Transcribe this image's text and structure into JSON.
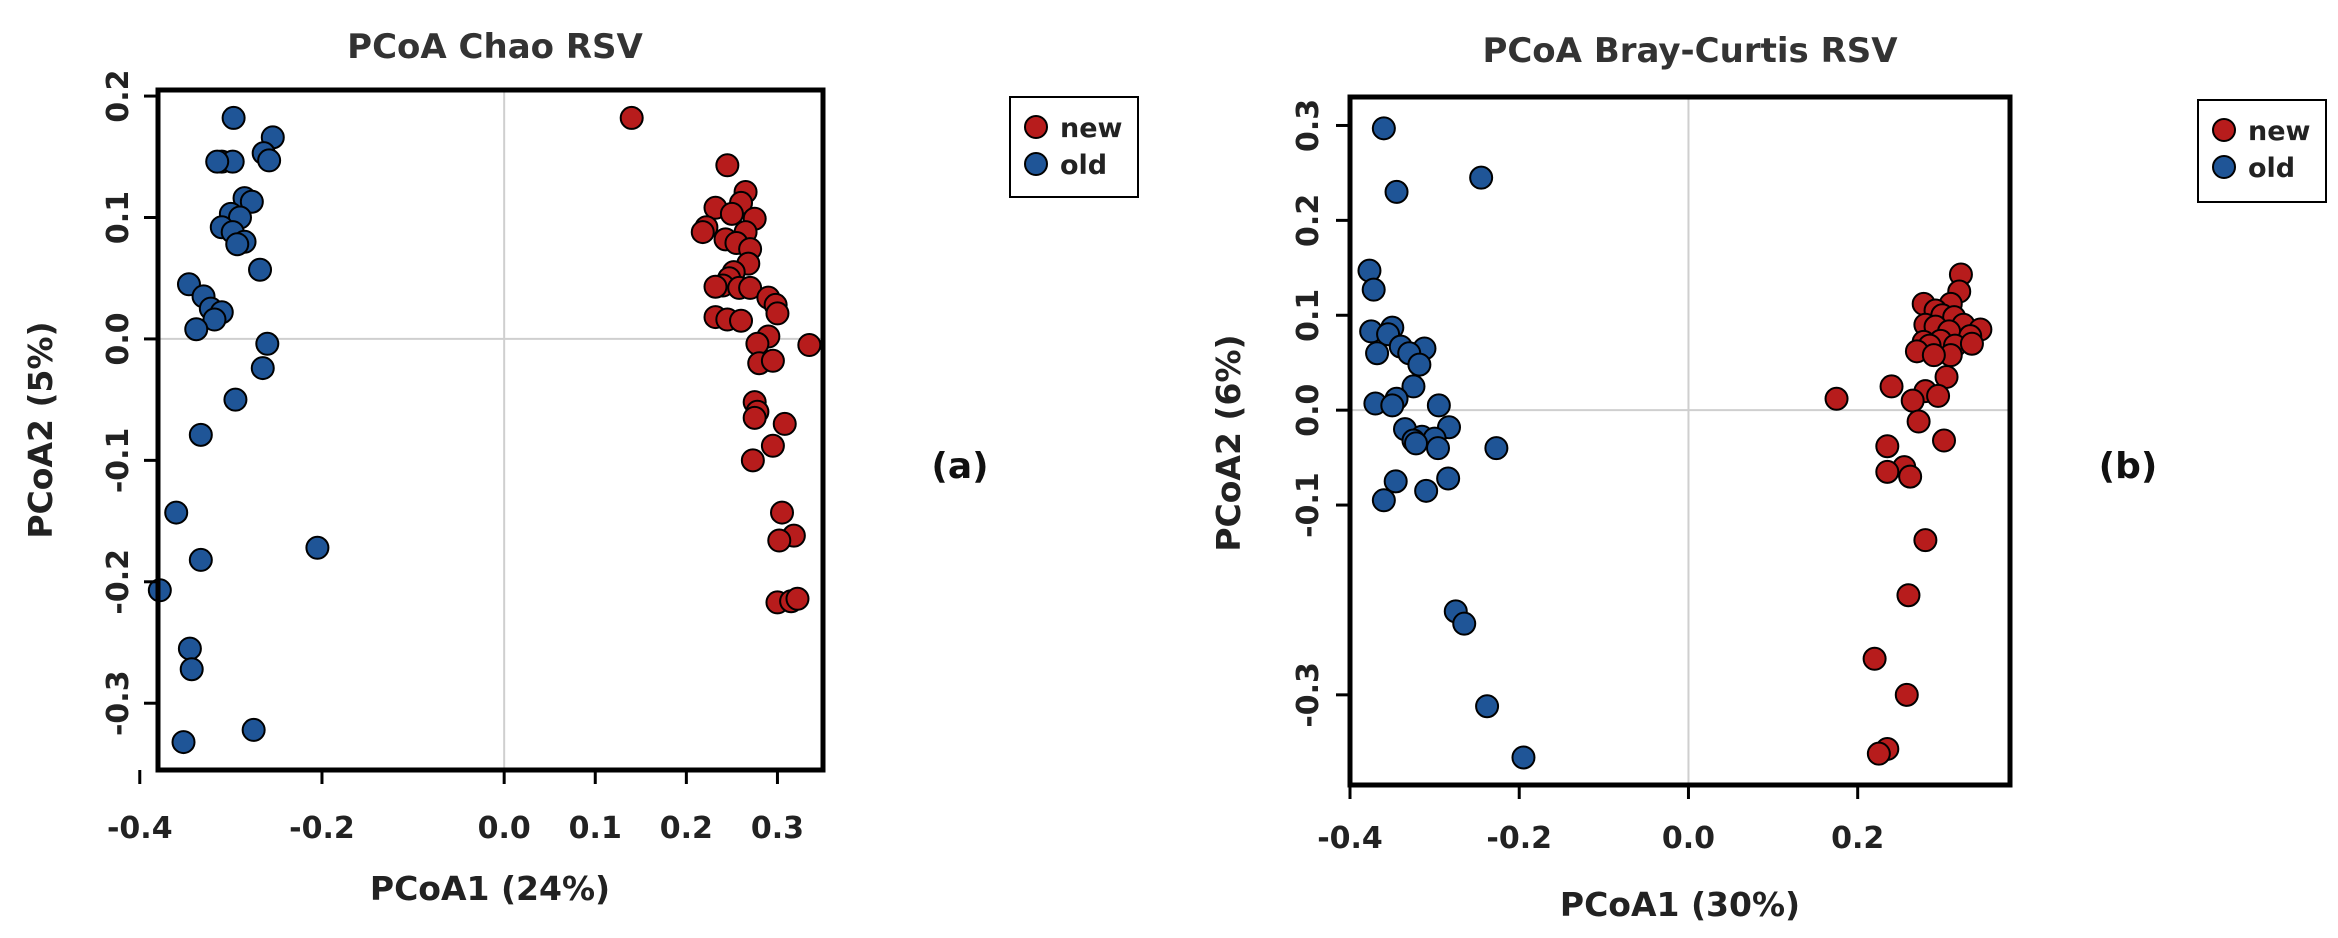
{
  "chart_data": [
    {
      "type": "scatter",
      "title": "PCoA Chao  RSV",
      "xlabel": "PCoA1 (24%)",
      "ylabel": "PCoA2 (5%)",
      "panel_label": "(a)",
      "xlim": [
        -0.38,
        0.35
      ],
      "ylim": [
        -0.355,
        0.205
      ],
      "xticks": [
        -0.4,
        -0.2,
        0.0,
        0.1,
        0.2,
        0.3
      ],
      "xtick_labels": [
        "-0.4",
        "-0.2",
        "0.0",
        "0.1",
        "0.2",
        "0.3"
      ],
      "yticks": [
        0.2,
        0.1,
        0.0,
        -0.1,
        -0.2,
        -0.3
      ],
      "ytick_labels": [
        "0.2",
        "0.1",
        "0.0",
        "-0.1",
        "-0.2",
        "-0.3"
      ],
      "grid": "zero-lines",
      "legend_placement": "right",
      "series": [
        {
          "name": "new",
          "color": "#b71c1c",
          "points": [
            [
              0.14,
              0.182
            ],
            [
              0.245,
              0.143
            ],
            [
              0.265,
              0.121
            ],
            [
              0.26,
              0.112
            ],
            [
              0.232,
              0.108
            ],
            [
              0.25,
              0.103
            ],
            [
              0.275,
              0.099
            ],
            [
              0.222,
              0.092
            ],
            [
              0.218,
              0.088
            ],
            [
              0.265,
              0.088
            ],
            [
              0.243,
              0.082
            ],
            [
              0.255,
              0.079
            ],
            [
              0.27,
              0.074
            ],
            [
              0.268,
              0.062
            ],
            [
              0.252,
              0.055
            ],
            [
              0.247,
              0.05
            ],
            [
              0.24,
              0.044
            ],
            [
              0.232,
              0.043
            ],
            [
              0.258,
              0.042
            ],
            [
              0.27,
              0.042
            ],
            [
              0.29,
              0.034
            ],
            [
              0.298,
              0.028
            ],
            [
              0.3,
              0.021
            ],
            [
              0.232,
              0.018
            ],
            [
              0.245,
              0.016
            ],
            [
              0.26,
              0.015
            ],
            [
              0.29,
              0.002
            ],
            [
              0.278,
              -0.004
            ],
            [
              0.335,
              -0.005
            ],
            [
              0.28,
              -0.02
            ],
            [
              0.295,
              -0.018
            ],
            [
              0.275,
              -0.052
            ],
            [
              0.278,
              -0.06
            ],
            [
              0.308,
              -0.07
            ],
            [
              0.275,
              -0.065
            ],
            [
              0.295,
              -0.088
            ],
            [
              0.273,
              -0.1
            ],
            [
              0.305,
              -0.143
            ],
            [
              0.318,
              -0.162
            ],
            [
              0.302,
              -0.166
            ],
            [
              0.3,
              -0.217
            ],
            [
              0.315,
              -0.216
            ],
            [
              0.322,
              -0.214
            ]
          ]
        },
        {
          "name": "old",
          "color": "#1f5597",
          "points": [
            [
              -0.297,
              0.182
            ],
            [
              -0.254,
              0.166
            ],
            [
              -0.264,
              0.153
            ],
            [
              -0.258,
              0.147
            ],
            [
              -0.31,
              0.146
            ],
            [
              -0.298,
              0.146
            ],
            [
              -0.315,
              0.146
            ],
            [
              -0.285,
              0.116
            ],
            [
              -0.277,
              0.113
            ],
            [
              -0.3,
              0.103
            ],
            [
              -0.29,
              0.1
            ],
            [
              -0.31,
              0.092
            ],
            [
              -0.298,
              0.088
            ],
            [
              -0.285,
              0.08
            ],
            [
              -0.293,
              0.078
            ],
            [
              -0.268,
              0.057
            ],
            [
              -0.346,
              0.045
            ],
            [
              -0.33,
              0.035
            ],
            [
              -0.322,
              0.025
            ],
            [
              -0.31,
              0.022
            ],
            [
              -0.318,
              0.016
            ],
            [
              -0.338,
              0.008
            ],
            [
              -0.26,
              -0.004
            ],
            [
              -0.265,
              -0.024
            ],
            [
              -0.295,
              -0.05
            ],
            [
              -0.333,
              -0.079
            ],
            [
              -0.36,
              -0.143
            ],
            [
              -0.205,
              -0.172
            ],
            [
              -0.333,
              -0.182
            ],
            [
              -0.378,
              -0.207
            ],
            [
              -0.345,
              -0.255
            ],
            [
              -0.343,
              -0.272
            ],
            [
              -0.275,
              -0.322
            ],
            [
              -0.352,
              -0.332
            ]
          ]
        }
      ]
    },
    {
      "type": "scatter",
      "title": "PCoA Bray-Curtis  RSV",
      "xlabel": "PCoA1 (30%)",
      "ylabel": "PCoA2 (6%)",
      "panel_label": "(b)",
      "xlim": [
        -0.4,
        0.38
      ],
      "ylim": [
        -0.395,
        0.33
      ],
      "xticks": [
        -0.4,
        -0.2,
        0.0,
        0.2
      ],
      "xtick_labels": [
        "-0.4",
        "-0.2",
        "0.0",
        "0.2"
      ],
      "yticks": [
        0.3,
        0.2,
        0.1,
        0.0,
        -0.1,
        -0.3
      ],
      "ytick_labels": [
        "0.3",
        "0.2",
        "0.1",
        "0.0",
        "-0.1",
        "-0.3"
      ],
      "grid": "zero-lines",
      "legend_placement": "right",
      "series": [
        {
          "name": "new",
          "color": "#b71c1c",
          "points": [
            [
              0.322,
              0.143
            ],
            [
              0.32,
              0.125
            ],
            [
              0.31,
              0.112
            ],
            [
              0.278,
              0.112
            ],
            [
              0.292,
              0.105
            ],
            [
              0.3,
              0.1
            ],
            [
              0.314,
              0.098
            ],
            [
              0.325,
              0.09
            ],
            [
              0.28,
              0.09
            ],
            [
              0.292,
              0.088
            ],
            [
              0.345,
              0.085
            ],
            [
              0.308,
              0.083
            ],
            [
              0.333,
              0.078
            ],
            [
              0.298,
              0.073
            ],
            [
              0.278,
              0.072
            ],
            [
              0.285,
              0.068
            ],
            [
              0.315,
              0.068
            ],
            [
              0.335,
              0.07
            ],
            [
              0.31,
              0.058
            ],
            [
              0.27,
              0.062
            ],
            [
              0.29,
              0.058
            ],
            [
              0.305,
              0.035
            ],
            [
              0.24,
              0.025
            ],
            [
              0.28,
              0.02
            ],
            [
              0.295,
              0.015
            ],
            [
              0.175,
              0.012
            ],
            [
              0.265,
              0.01
            ],
            [
              0.272,
              -0.012
            ],
            [
              0.302,
              -0.032
            ],
            [
              0.235,
              -0.038
            ],
            [
              0.255,
              -0.06
            ],
            [
              0.235,
              -0.065
            ],
            [
              0.262,
              -0.07
            ],
            [
              0.28,
              -0.137
            ],
            [
              0.26,
              -0.195
            ],
            [
              0.22,
              -0.262
            ],
            [
              0.258,
              -0.3
            ],
            [
              0.235,
              -0.357
            ],
            [
              0.225,
              -0.362
            ]
          ]
        },
        {
          "name": "old",
          "color": "#1f5597",
          "points": [
            [
              -0.36,
              0.297
            ],
            [
              -0.245,
              0.245
            ],
            [
              -0.345,
              0.23
            ],
            [
              -0.377,
              0.147
            ],
            [
              -0.372,
              0.127
            ],
            [
              -0.35,
              0.087
            ],
            [
              -0.375,
              0.083
            ],
            [
              -0.355,
              0.08
            ],
            [
              -0.34,
              0.067
            ],
            [
              -0.312,
              0.065
            ],
            [
              -0.368,
              0.06
            ],
            [
              -0.33,
              0.06
            ],
            [
              -0.318,
              0.048
            ],
            [
              -0.325,
              0.025
            ],
            [
              -0.345,
              0.012
            ],
            [
              -0.37,
              0.007
            ],
            [
              -0.35,
              0.005
            ],
            [
              -0.295,
              0.005
            ],
            [
              -0.283,
              -0.018
            ],
            [
              -0.335,
              -0.02
            ],
            [
              -0.315,
              -0.028
            ],
            [
              -0.3,
              -0.03
            ],
            [
              -0.325,
              -0.032
            ],
            [
              -0.322,
              -0.035
            ],
            [
              -0.296,
              -0.04
            ],
            [
              -0.227,
              -0.04
            ],
            [
              -0.346,
              -0.075
            ],
            [
              -0.284,
              -0.072
            ],
            [
              -0.31,
              -0.085
            ],
            [
              -0.36,
              -0.095
            ],
            [
              -0.275,
              -0.212
            ],
            [
              -0.265,
              -0.225
            ],
            [
              -0.238,
              -0.312
            ],
            [
              -0.195,
              -0.366
            ]
          ]
        }
      ]
    }
  ]
}
